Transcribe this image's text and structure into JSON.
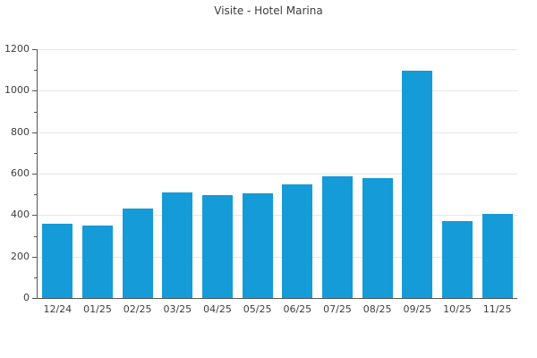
{
  "chart_data": {
    "type": "bar",
    "title": "Visite - Hotel Marina",
    "categories": [
      "12/24",
      "01/25",
      "02/25",
      "03/25",
      "04/25",
      "05/25",
      "06/25",
      "07/25",
      "08/25",
      "09/25",
      "10/25",
      "11/25"
    ],
    "values": [
      360,
      350,
      430,
      510,
      495,
      505,
      550,
      585,
      580,
      1095,
      370,
      405
    ],
    "xlabel": "",
    "ylabel": "",
    "ylim": [
      0,
      1200
    ],
    "yticks": [
      0,
      200,
      400,
      600,
      800,
      1000,
      1200
    ],
    "yticks_minor": [
      100,
      300,
      500,
      700,
      900,
      1100
    ],
    "grid": "horizontal-major",
    "legend_position": "none",
    "colors": {
      "bar": "#149bd8",
      "grid": "#e7e7e7",
      "axis": "#555555",
      "text": "#3d3d3d"
    }
  }
}
